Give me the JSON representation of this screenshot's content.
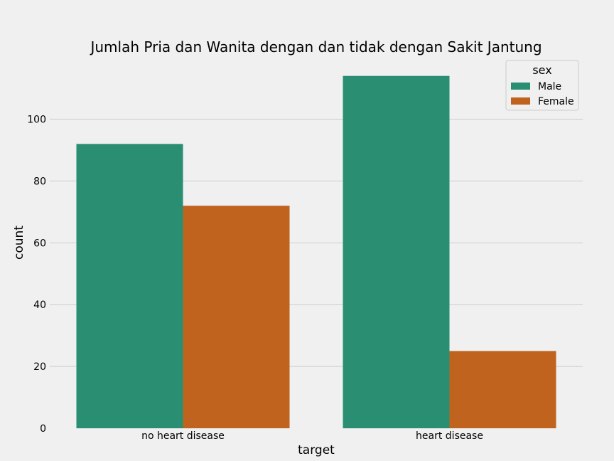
{
  "chart_data": {
    "type": "bar",
    "title": "Jumlah Pria dan Wanita dengan dan tidak dengan Sakit Jantung",
    "xlabel": "target",
    "ylabel": "count",
    "categories": [
      "no heart disease",
      "heart disease"
    ],
    "series": [
      {
        "name": "Male",
        "values": [
          92,
          114
        ],
        "color": "#2a8f72"
      },
      {
        "name": "Female",
        "values": [
          72,
          25
        ],
        "color": "#c0631f"
      }
    ],
    "ylim": [
      0,
      119
    ],
    "yticks": [
      0,
      20,
      40,
      60,
      80,
      100
    ],
    "grid": true,
    "legend": {
      "title": "sex",
      "position": "top-right"
    }
  }
}
